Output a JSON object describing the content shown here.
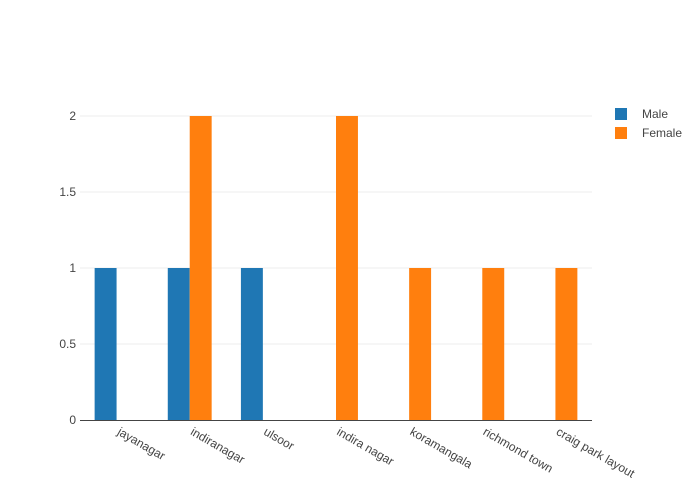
{
  "chart_data": {
    "type": "bar",
    "categories": [
      "jayanagar",
      "indiranagar",
      "ulsoor",
      "indira nagar",
      "koramangala",
      "richmond town",
      "craig park layout"
    ],
    "series": [
      {
        "name": "Male",
        "color": "#1f77b4",
        "values": [
          1,
          1,
          1,
          0,
          0,
          0,
          0
        ]
      },
      {
        "name": "Female",
        "color": "#ff7f0e",
        "values": [
          0,
          2,
          0,
          2,
          1,
          1,
          1
        ]
      }
    ],
    "y_ticks": [
      0,
      0.5,
      1,
      1.5,
      2
    ],
    "y_tick_labels": [
      "0",
      "0.5",
      "1",
      "1.5",
      "2"
    ],
    "ylim": [
      0,
      2.1053
    ],
    "grid": true,
    "legend_position": "top-right"
  }
}
